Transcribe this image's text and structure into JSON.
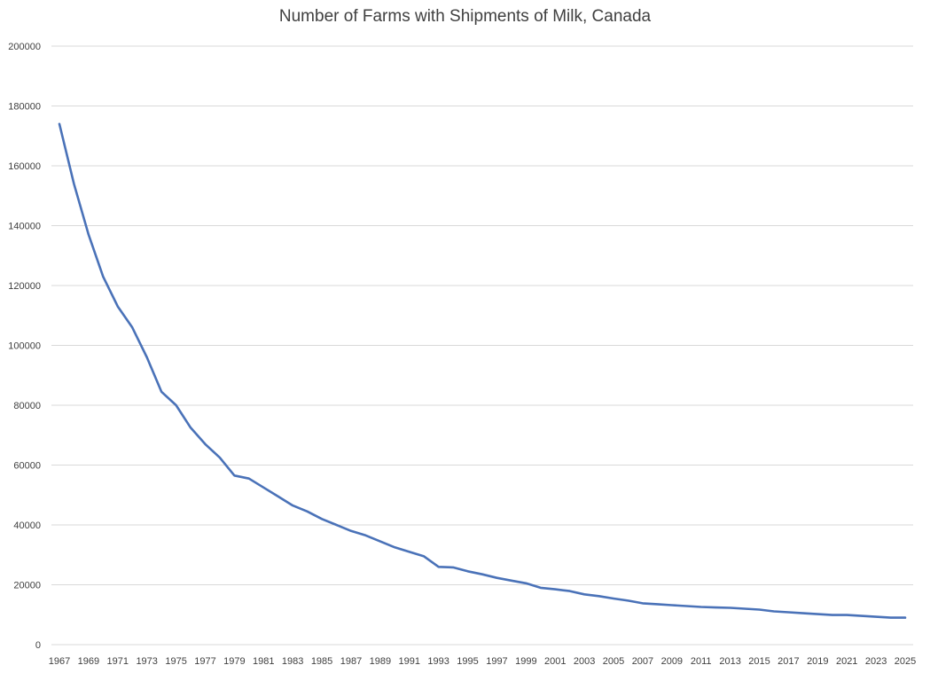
{
  "chart_data": {
    "type": "line",
    "title": "Number of Farms with Shipments of Milk, Canada",
    "xlabel": "",
    "ylabel": "",
    "ylim": [
      0,
      200000
    ],
    "yticks": [
      "0",
      "20000",
      "40000",
      "60000",
      "80000",
      "100000",
      "120000",
      "140000",
      "160000",
      "180000",
      "200000"
    ],
    "xtick_labels": [
      "1967",
      "1969",
      "1971",
      "1973",
      "1975",
      "1977",
      "1979",
      "1981",
      "1983",
      "1985",
      "1987",
      "1989",
      "1991",
      "1993",
      "1995",
      "1997",
      "1999",
      "2001",
      "2003",
      "2005",
      "2007",
      "2009",
      "2011",
      "2013",
      "2015",
      "2017",
      "2019",
      "2021",
      "2023",
      "2025"
    ],
    "grid": true,
    "line_color": "#4a72b8",
    "grid_color": "#d9d9d9",
    "series": [
      {
        "x": [
          1967,
          1968,
          1969,
          1970,
          1971,
          1972,
          1973,
          1974,
          1975,
          1976,
          1977,
          1978,
          1979,
          1980,
          1981,
          1982,
          1983,
          1984,
          1985,
          1986,
          1987,
          1988,
          1989,
          1990,
          1991,
          1992,
          1993,
          1994,
          1995,
          1996,
          1997,
          1998,
          1999,
          2000,
          2001,
          2002,
          2003,
          2004,
          2005,
          2006,
          2007,
          2008,
          2009,
          2010,
          2011,
          2012,
          2013,
          2014,
          2015,
          2016,
          2017,
          2018,
          2019,
          2020,
          2021,
          2022,
          2023,
          2024,
          2025
        ],
        "values": [
          174000,
          154000,
          137000,
          123000,
          113000,
          106000,
          96000,
          84500,
          80000,
          72500,
          67000,
          62500,
          56500,
          55500,
          52500,
          49500,
          46500,
          44500,
          42000,
          40000,
          38000,
          36500,
          34500,
          32500,
          31000,
          29500,
          26000,
          25800,
          24500,
          23500,
          22300,
          21400,
          20500,
          19000,
          18500,
          17900,
          16800,
          16200,
          15400,
          14700,
          13800,
          13500,
          13200,
          12900,
          12600,
          12400,
          12300,
          12000,
          11700,
          11100,
          10800,
          10500,
          10200,
          9900,
          9900,
          9600,
          9300,
          9000,
          9000
        ]
      }
    ]
  }
}
